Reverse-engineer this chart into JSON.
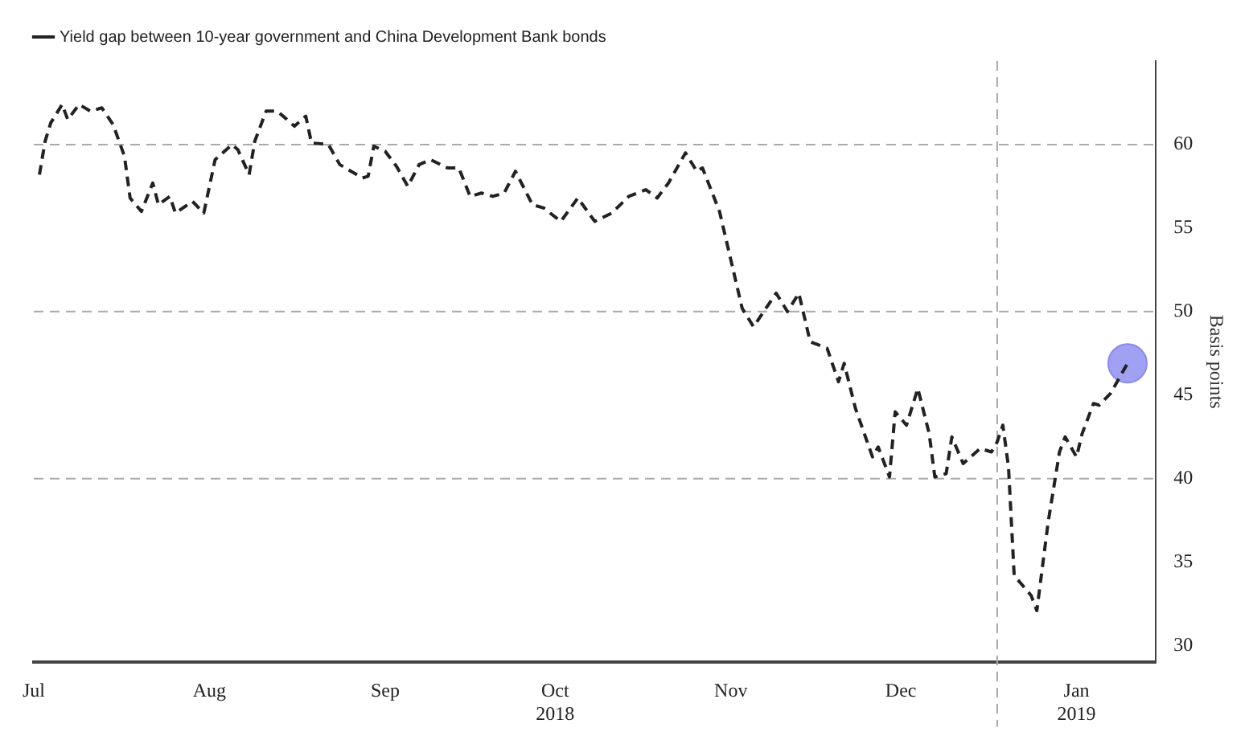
{
  "chart_data": {
    "type": "line",
    "ylabel": "Basis points",
    "x": [
      "2018-07-16",
      "2018-07-17",
      "2018-07-18",
      "2018-07-20",
      "2018-07-21",
      "2018-07-23",
      "2018-07-25",
      "2018-07-27",
      "2018-07-29",
      "2018-07-31",
      "2018-08-01",
      "2018-08-03",
      "2018-08-05",
      "2018-08-06",
      "2018-08-08",
      "2018-08-09",
      "2018-08-12",
      "2018-08-14",
      "2018-08-16",
      "2018-08-19",
      "2018-08-20",
      "2018-08-22",
      "2018-08-23",
      "2018-08-25",
      "2018-08-27",
      "2018-08-30",
      "2018-09-01",
      "2018-09-02",
      "2018-09-05",
      "2018-09-07",
      "2018-09-11",
      "2018-09-12",
      "2018-09-13",
      "2018-09-15",
      "2018-09-17",
      "2018-09-19",
      "2018-09-21",
      "2018-09-23",
      "2018-09-26",
      "2018-09-28",
      "2018-09-30",
      "2018-10-02",
      "2018-10-04",
      "2018-10-06",
      "2018-10-08",
      "2018-10-11",
      "2018-10-13",
      "2018-10-16",
      "2018-10-19",
      "2018-10-22",
      "2018-10-25",
      "2018-10-28",
      "2018-10-31",
      "2018-11-02",
      "2018-11-04",
      "2018-11-07",
      "2018-11-09",
      "2018-11-10",
      "2018-11-13",
      "2018-11-15",
      "2018-11-17",
      "2018-11-19",
      "2018-11-23",
      "2018-11-25",
      "2018-11-27",
      "2018-11-29",
      "2018-12-02",
      "2018-12-04",
      "2018-12-05",
      "2018-12-07",
      "2018-12-10",
      "2018-12-11",
      "2018-12-13",
      "2018-12-14",
      "2018-12-16",
      "2018-12-18",
      "2018-12-20",
      "2018-12-21",
      "2018-12-23",
      "2018-12-24",
      "2018-12-26",
      "2018-12-29",
      "2018-12-31",
      "2019-01-01",
      "2019-01-02",
      "2019-01-03",
      "2019-01-04",
      "2019-01-07",
      "2019-01-08",
      "2019-01-10",
      "2019-01-12",
      "2019-01-13",
      "2019-01-15",
      "2019-01-16",
      "2019-01-18",
      "2019-01-19",
      "2019-01-21",
      "2019-01-24"
    ],
    "series": [
      {
        "name": "Yield gap between 10-year government and China Development Bank bonds",
        "color": "#222222",
        "line_style": "dashed",
        "values": [
          58.2,
          60.2,
          61.3,
          62.4,
          61.5,
          62.4,
          62.0,
          62.2,
          61.2,
          59.3,
          56.8,
          56.0,
          57.7,
          56.4,
          56.9,
          55.9,
          56.6,
          55.9,
          59.1,
          60.0,
          59.7,
          58.2,
          60.2,
          62.0,
          62.0,
          61.1,
          61.7,
          60.1,
          60.0,
          58.8,
          58.0,
          58.1,
          59.9,
          59.6,
          58.7,
          57.5,
          58.8,
          59.1,
          58.6,
          58.6,
          56.9,
          57.1,
          56.9,
          57.1,
          58.4,
          56.4,
          56.2,
          55.4,
          56.8,
          55.4,
          55.9,
          56.9,
          57.3,
          56.8,
          57.7,
          59.5,
          58.4,
          58.6,
          56.0,
          53.1,
          50.2,
          49.1,
          51.1,
          50.0,
          51.1,
          48.2,
          47.8,
          45.8,
          46.9,
          44.2,
          41.3,
          41.9,
          40.1,
          44.0,
          43.2,
          45.4,
          42.7,
          40.1,
          40.3,
          42.5,
          40.9,
          41.8,
          41.6,
          42.2,
          43.2,
          40.7,
          34.2,
          33.0,
          32.1,
          37.4,
          41.6,
          42.5,
          41.3,
          42.7,
          44.5,
          44.4,
          45.1,
          46.9
        ]
      },
      {
        "type": "scatter",
        "color": "#8a8af0",
        "marker": "circle",
        "x": [
          "2019-01-24"
        ],
        "values": [
          46.9
        ]
      }
    ],
    "xlim": [
      "2018-07-15",
      "2019-01-29"
    ],
    "xticks": [
      {
        "value": "2018-07-15",
        "label": "Jul"
      },
      {
        "value": "2018-08-15",
        "label": "Aug"
      },
      {
        "value": "2018-09-15",
        "label": "Sep"
      },
      {
        "value": "2018-10-15",
        "label": "Oct\n2018"
      },
      {
        "value": "2018-11-15",
        "label": "Nov"
      },
      {
        "value": "2018-12-15",
        "label": "Dec"
      },
      {
        "value": "2019-01-15",
        "label": "Jan\n2019"
      }
    ],
    "ylim": [
      29,
      65
    ],
    "yticks": [
      30,
      35,
      40,
      45,
      50,
      55,
      60
    ],
    "ref_lines": [
      {
        "axis": "y",
        "value": 60,
        "color": "#aaaaaa",
        "line_style": "dashed"
      },
      {
        "axis": "y",
        "value": 50,
        "color": "#aaaaaa",
        "line_style": "dashed"
      },
      {
        "axis": "y",
        "value": 40,
        "color": "#aaaaaa",
        "line_style": "dashed"
      },
      {
        "axis": "x",
        "value": "2019-01-01",
        "color": "#aaaaaa",
        "line_style": "dashed"
      }
    ],
    "grid": false,
    "legend": "top left",
    "marker": "none"
  }
}
